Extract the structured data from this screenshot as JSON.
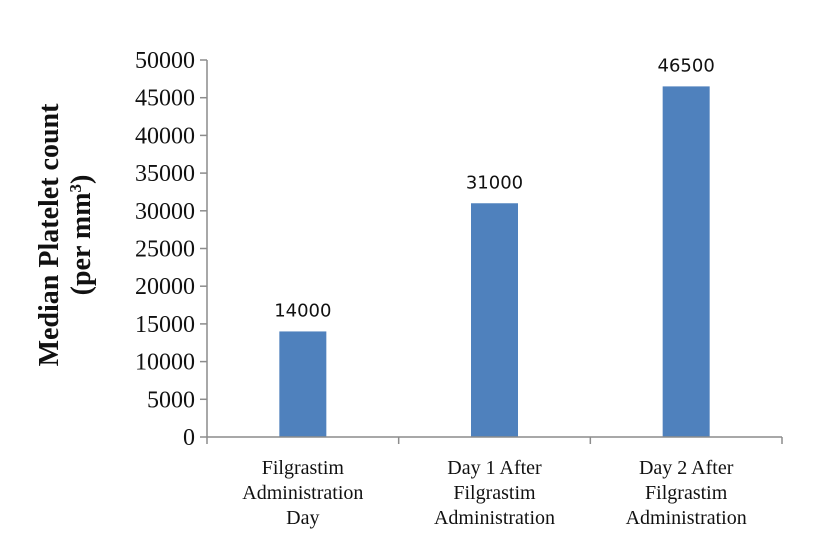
{
  "chart_data": {
    "type": "bar",
    "categories": [
      [
        "Filgrastim",
        "Administration",
        "Day"
      ],
      [
        "Day 1 After",
        "Filgrastim",
        "Administration"
      ],
      [
        "Day 2 After",
        "Filgrastim",
        "Administration"
      ]
    ],
    "values": [
      14000,
      31000,
      46500
    ],
    "data_labels": [
      "14000",
      "31000",
      "46500"
    ],
    "title": "",
    "xlabel": "",
    "ylabel": {
      "line1": "Median Platelet count",
      "line2_prefix": "(per mm",
      "line2_sup": "3",
      "line2_suffix": ")"
    },
    "ylim": [
      0,
      50000
    ],
    "yticks": [
      0,
      5000,
      10000,
      15000,
      20000,
      25000,
      30000,
      35000,
      40000,
      45000,
      50000
    ],
    "grid": false,
    "legend": "none",
    "colors": {
      "bar": "#4f81bd",
      "axis": "#8c8c8c",
      "text": "#111111"
    }
  }
}
